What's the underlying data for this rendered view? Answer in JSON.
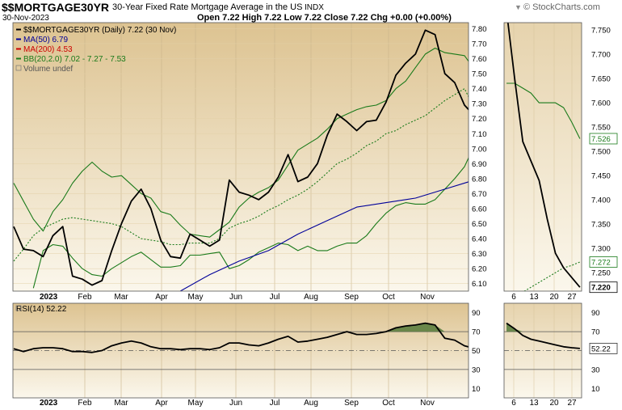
{
  "header": {
    "symbol": "$$MORTGAGE30YR",
    "description": "30-Year Fixed Rate Mortgage Average in the US",
    "exchange": "INDX",
    "date": "30-Nov-2023",
    "ohlc": "Open 7.22  High 7.22  Low 7.22  Close 7.22  Chg +0.00 (+0.00%)",
    "brand": "© StockCharts.com",
    "brand_badge": "▼"
  },
  "chart_data": [
    {
      "type": "line",
      "title": "$$MORTGAGE30YR (Daily) 7.22 (30 Nov)",
      "x_months": [
        "2023",
        "Feb",
        "Mar",
        "Apr",
        "May",
        "Jun",
        "Jul",
        "Aug",
        "Sep",
        "Oct",
        "Nov"
      ],
      "ylim": [
        6.05,
        7.84
      ],
      "y_ticks": [
        "7.80",
        "7.70",
        "7.60",
        "7.50",
        "7.40",
        "7.30",
        "7.20",
        "7.10",
        "7.00",
        "6.90",
        "6.80",
        "6.70",
        "6.60",
        "6.50",
        "6.40",
        "6.30",
        "6.20",
        "6.10"
      ],
      "legend": [
        {
          "text": "$$MORTGAGE30YR (Daily) 7.22 (30 Nov)",
          "color": "#000000"
        },
        {
          "text": "MA(50) 6.79",
          "color": "#000099"
        },
        {
          "text": "MA(200) 4.53",
          "color": "#cc0000"
        },
        {
          "text": "BB(20,2.0) 7.02 - 7.27 - 7.53",
          "color": "#1a7a1a"
        },
        {
          "text": "Volume undef",
          "color": "#555555"
        }
      ],
      "series": [
        {
          "name": "$$MORTGAGE30YR",
          "color": "#000000",
          "x_index": [
            0,
            1,
            2,
            3,
            4,
            5,
            6,
            7,
            8,
            9,
            10,
            11,
            12,
            13,
            14,
            15,
            16,
            17,
            18,
            19,
            20,
            21,
            22,
            23,
            24,
            25,
            26,
            27,
            28,
            29,
            30,
            31,
            32,
            33,
            34,
            35,
            36,
            37,
            38,
            39,
            40,
            41,
            42,
            43,
            44,
            45,
            46,
            47
          ],
          "values": [
            6.48,
            6.33,
            6.32,
            6.28,
            6.42,
            6.48,
            6.15,
            6.13,
            6.09,
            6.12,
            6.32,
            6.5,
            6.65,
            6.73,
            6.6,
            6.39,
            6.28,
            6.27,
            6.43,
            6.39,
            6.35,
            6.39,
            6.79,
            6.71,
            6.69,
            6.66,
            6.71,
            6.81,
            6.96,
            6.78,
            6.81,
            6.9,
            7.09,
            7.23,
            7.18,
            7.12,
            7.18,
            7.19,
            7.31,
            7.49,
            7.57,
            7.63,
            7.79,
            7.76,
            7.5,
            7.44,
            7.29,
            7.22
          ]
        },
        {
          "name": "MA(50)",
          "color": "#000099",
          "x_index": [
            17,
            20,
            23,
            26,
            29,
            32,
            35,
            38,
            41,
            44,
            47
          ],
          "values": [
            6.05,
            6.16,
            6.25,
            6.32,
            6.43,
            6.52,
            6.61,
            6.64,
            6.67,
            6.73,
            6.79
          ]
        },
        {
          "name": "BB upper",
          "color": "#1a7a1a",
          "x_index": [
            0,
            1,
            2,
            3,
            4,
            5,
            6,
            7,
            8,
            9,
            10,
            11,
            12,
            13,
            14,
            15,
            16,
            17,
            18,
            19,
            20,
            21,
            22,
            23,
            24,
            25,
            26,
            27,
            28,
            29,
            30,
            31,
            32,
            33,
            34,
            35,
            36,
            37,
            38,
            39,
            40,
            41,
            42,
            43,
            44,
            45,
            46,
            47
          ],
          "values": [
            6.77,
            6.65,
            6.53,
            6.45,
            6.58,
            6.66,
            6.77,
            6.85,
            6.91,
            6.85,
            6.81,
            6.82,
            6.76,
            6.7,
            6.67,
            6.58,
            6.56,
            6.49,
            6.43,
            6.42,
            6.41,
            6.46,
            6.51,
            6.61,
            6.67,
            6.71,
            6.74,
            6.79,
            6.89,
            6.99,
            7.03,
            7.07,
            7.13,
            7.2,
            7.23,
            7.26,
            7.28,
            7.29,
            7.32,
            7.4,
            7.45,
            7.54,
            7.63,
            7.67,
            7.64,
            7.63,
            7.62,
            7.53
          ]
        },
        {
          "name": "BB middle",
          "color": "#1a7a1a",
          "dashed": true,
          "x_index": [
            0,
            1,
            2,
            3,
            4,
            5,
            6,
            7,
            8,
            9,
            10,
            11,
            12,
            13,
            14,
            15,
            16,
            17,
            18,
            19,
            20,
            21,
            22,
            23,
            24,
            25,
            26,
            27,
            28,
            29,
            30,
            31,
            32,
            33,
            34,
            35,
            36,
            37,
            38,
            39,
            40,
            41,
            42,
            43,
            44,
            45,
            46,
            47
          ],
          "values": [
            6.25,
            6.33,
            6.42,
            6.47,
            6.5,
            6.53,
            6.54,
            6.53,
            6.52,
            6.51,
            6.5,
            6.48,
            6.44,
            6.4,
            6.39,
            6.38,
            6.36,
            6.36,
            6.37,
            6.37,
            6.37,
            6.4,
            6.47,
            6.5,
            6.52,
            6.55,
            6.59,
            6.62,
            6.66,
            6.69,
            6.73,
            6.78,
            6.84,
            6.9,
            6.93,
            6.97,
            7.02,
            7.05,
            7.1,
            7.12,
            7.16,
            7.19,
            7.22,
            7.27,
            7.32,
            7.36,
            7.4,
            7.27
          ]
        },
        {
          "name": "BB lower",
          "color": "#1a7a1a",
          "x_index": [
            2,
            3,
            4,
            5,
            6,
            7,
            8,
            9,
            10,
            11,
            12,
            13,
            14,
            15,
            16,
            17,
            18,
            19,
            20,
            21,
            22,
            23,
            24,
            25,
            26,
            27,
            28,
            29,
            30,
            31,
            32,
            33,
            34,
            35,
            36,
            37,
            38,
            39,
            40,
            41,
            42,
            43,
            44,
            45,
            46,
            47
          ],
          "values": [
            6.07,
            6.32,
            6.36,
            6.35,
            6.27,
            6.2,
            6.16,
            6.15,
            6.2,
            6.24,
            6.28,
            6.31,
            6.26,
            6.21,
            6.21,
            6.22,
            6.29,
            6.29,
            6.3,
            6.31,
            6.2,
            6.22,
            6.26,
            6.31,
            6.34,
            6.37,
            6.36,
            6.32,
            6.35,
            6.32,
            6.32,
            6.35,
            6.37,
            6.37,
            6.42,
            6.5,
            6.57,
            6.62,
            6.64,
            6.63,
            6.63,
            6.66,
            6.73,
            6.8,
            6.88,
            7.02
          ]
        }
      ]
    },
    {
      "type": "line",
      "title": "zoom panel",
      "x_ticks": [
        "6",
        "13",
        "20",
        "27"
      ],
      "ylim": [
        7.212,
        7.765
      ],
      "y_ticks": [
        "7.750",
        "7.700",
        "7.650",
        "7.600",
        "7.550",
        "7.500",
        "7.450",
        "7.400",
        "7.350",
        "7.300",
        "7.250"
      ],
      "value_labels": [
        "7.526",
        "7.272",
        "7.220"
      ],
      "series": [
        {
          "name": "price",
          "color": "#000000",
          "x_index": [
            0,
            1,
            2,
            3,
            4,
            5,
            6,
            7,
            8,
            9
          ],
          "values": [
            7.79,
            7.65,
            7.52,
            7.48,
            7.44,
            7.36,
            7.29,
            7.26,
            7.24,
            7.22
          ]
        },
        {
          "name": "BB upper",
          "color": "#1a7a1a",
          "x_index": [
            0,
            1,
            2,
            3,
            4,
            5,
            6,
            7,
            8,
            9
          ],
          "values": [
            7.64,
            7.64,
            7.63,
            7.62,
            7.6,
            7.6,
            7.6,
            7.59,
            7.56,
            7.526
          ]
        },
        {
          "name": "BB middle",
          "color": "#1a7a1a",
          "dashed": true,
          "x_index": [
            1,
            2,
            3,
            4,
            5,
            6,
            7,
            8,
            9
          ],
          "values": [
            7.21,
            7.21,
            7.22,
            7.23,
            7.24,
            7.25,
            7.26,
            7.265,
            7.272
          ]
        }
      ]
    },
    {
      "type": "line",
      "title": "RSI(14) 52.22",
      "ylim": [
        0,
        100
      ],
      "y_ticks": [
        "90",
        "70",
        "50",
        "30",
        "10"
      ],
      "overbought": 70,
      "oversold": 30,
      "midline": 50,
      "series": [
        {
          "name": "RSI(14)",
          "color": "#000000",
          "x_index": [
            0,
            1,
            2,
            3,
            4,
            5,
            6,
            7,
            8,
            9,
            10,
            11,
            12,
            13,
            14,
            15,
            16,
            17,
            18,
            19,
            20,
            21,
            22,
            23,
            24,
            25,
            26,
            27,
            28,
            29,
            30,
            31,
            32,
            33,
            34,
            35,
            36,
            37,
            38,
            39,
            40,
            41,
            42,
            43,
            44,
            45,
            46,
            47
          ],
          "values": [
            52,
            49,
            52,
            53,
            53,
            52,
            49,
            49,
            48,
            50,
            55,
            58,
            60,
            58,
            54,
            52,
            52,
            51,
            52,
            52,
            51,
            53,
            58,
            58,
            56,
            55,
            58,
            62,
            65,
            59,
            60,
            62,
            64,
            67,
            70,
            67,
            67,
            68,
            70,
            74,
            76,
            77,
            79,
            77,
            63,
            61,
            55,
            52.22
          ]
        }
      ]
    },
    {
      "type": "line",
      "title": "RSI zoom",
      "x_ticks": [
        "6",
        "13",
        "20",
        "27"
      ],
      "value_labels": [
        "52.22"
      ],
      "series": [
        {
          "name": "RSI(14)",
          "color": "#000000",
          "x_index": [
            0,
            1,
            2,
            3,
            4,
            5,
            6,
            7,
            8,
            9
          ],
          "values": [
            79,
            73,
            66,
            62,
            60,
            58,
            56,
            54,
            53,
            52.22
          ]
        }
      ]
    }
  ],
  "bottom_axis": [
    "2023",
    "Feb",
    "Mar",
    "Apr",
    "May",
    "Jun",
    "Jul",
    "Aug",
    "Sep",
    "Oct",
    "Nov"
  ]
}
